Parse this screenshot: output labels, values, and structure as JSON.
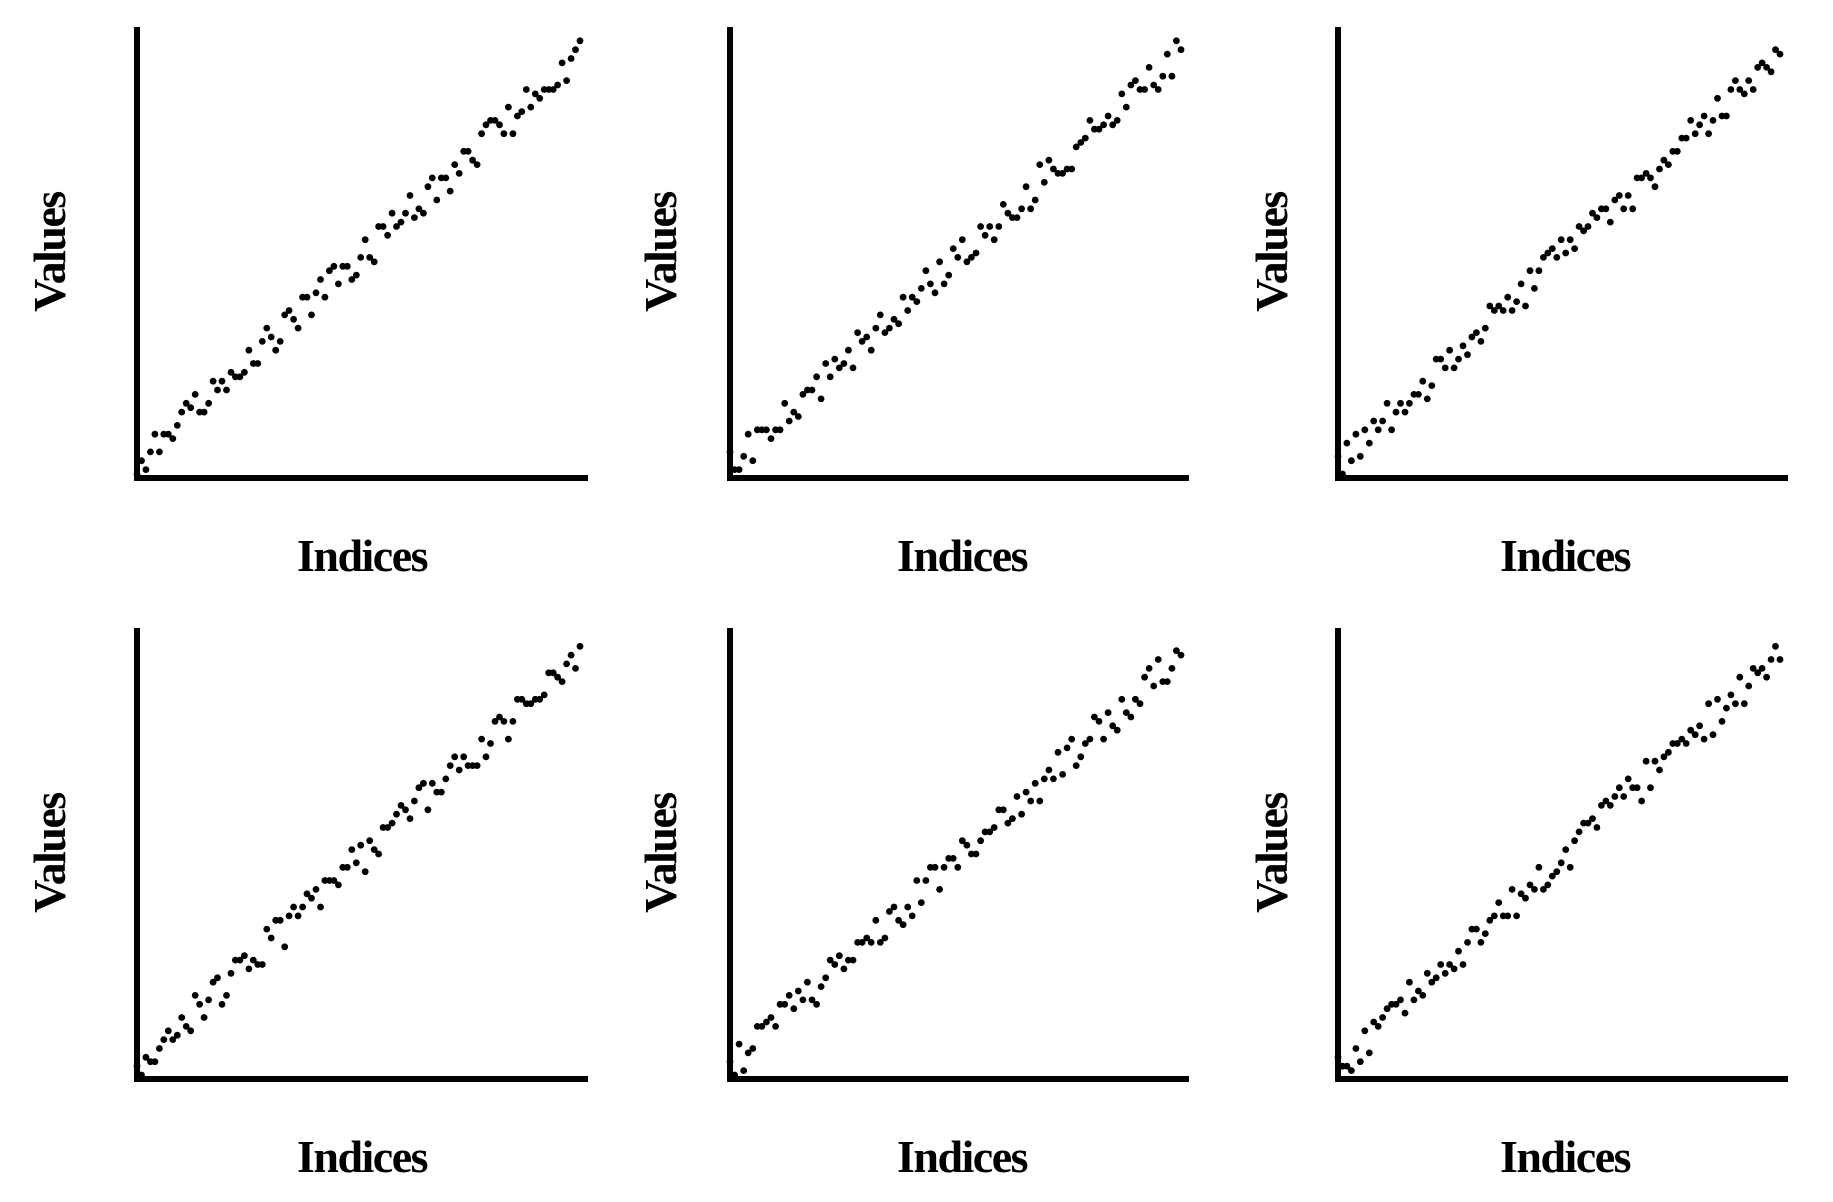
{
  "figure": {
    "background": "#ffffff",
    "ink_color": "#000000",
    "rows": 2,
    "cols": 3,
    "description": "Grid of six scatter plots of noisy ascending values versus indices; no ticks, no tick labels, no titles, no legend, no grid"
  },
  "chart_data": [
    {
      "type": "scatter",
      "title": "",
      "xlabel": "Indices",
      "ylabel": "Values",
      "x_mode": "index",
      "n_points": 100,
      "x_range": [
        0,
        99
      ],
      "ylim_percent": [
        0,
        100
      ],
      "grid": false,
      "legend": false,
      "axis_ticks": "none",
      "marker": {
        "shape": "circle",
        "color": "#000000"
      },
      "y_values": [
        0,
        3,
        1,
        5,
        9,
        5,
        9,
        9,
        8,
        11,
        14,
        16,
        15,
        18,
        14,
        14,
        16,
        21,
        19,
        21,
        19,
        23,
        22,
        22,
        23,
        28,
        25,
        25,
        30,
        33,
        31,
        28,
        30,
        36,
        37,
        35,
        33,
        40,
        40,
        36,
        41,
        44,
        40,
        46,
        47,
        43,
        47,
        47,
        44,
        45,
        49,
        53,
        49,
        48,
        56,
        56,
        54,
        59,
        56,
        57,
        59,
        63,
        58,
        60,
        59,
        65,
        67,
        62,
        67,
        67,
        64,
        70,
        68,
        73,
        73,
        71,
        70,
        77,
        79,
        80,
        80,
        79,
        77,
        83,
        77,
        81,
        82,
        87,
        83,
        86,
        85,
        87,
        87,
        87,
        88,
        93,
        89,
        94,
        96,
        98
      ]
    },
    {
      "type": "scatter",
      "title": "",
      "xlabel": "Indices",
      "ylabel": "Values",
      "x_mode": "index",
      "n_points": 100,
      "x_range": [
        0,
        99
      ],
      "ylim_percent": [
        0,
        100
      ],
      "grid": false,
      "legend": false,
      "axis_ticks": "none",
      "marker": {
        "shape": "circle",
        "color": "#000000"
      },
      "y_values": [
        5,
        1,
        1,
        4,
        9,
        3,
        10,
        10,
        10,
        8,
        10,
        10,
        16,
        12,
        14,
        13,
        18,
        19,
        19,
        22,
        17,
        25,
        22,
        26,
        24,
        25,
        28,
        24,
        32,
        30,
        31,
        28,
        33,
        36,
        32,
        33,
        35,
        34,
        40,
        37,
        40,
        39,
        42,
        46,
        43,
        41,
        48,
        43,
        45,
        51,
        49,
        53,
        48,
        49,
        50,
        56,
        54,
        56,
        53,
        56,
        61,
        59,
        58,
        58,
        60,
        65,
        60,
        62,
        70,
        66,
        71,
        69,
        68,
        68,
        69,
        69,
        74,
        75,
        76,
        80,
        78,
        78,
        79,
        81,
        79,
        80,
        86,
        83,
        88,
        89,
        87,
        87,
        92,
        88,
        87,
        90,
        95,
        90,
        98,
        96
      ]
    },
    {
      "type": "scatter",
      "title": "",
      "xlabel": "Indices",
      "ylabel": "Values",
      "x_mode": "index",
      "n_points": 100,
      "x_range": [
        0,
        99
      ],
      "ylim_percent": [
        0,
        100
      ],
      "grid": false,
      "legend": false,
      "axis_ticks": "none",
      "marker": {
        "shape": "circle",
        "color": "#000000"
      },
      "y_values": [
        4,
        0,
        7,
        3,
        9,
        4,
        10,
        7,
        12,
        10,
        12,
        16,
        10,
        14,
        16,
        14,
        16,
        18,
        18,
        21,
        17,
        20,
        26,
        26,
        24,
        28,
        24,
        26,
        29,
        27,
        31,
        32,
        30,
        33,
        38,
        37,
        38,
        37,
        40,
        37,
        39,
        43,
        38,
        46,
        42,
        46,
        49,
        50,
        51,
        49,
        53,
        50,
        53,
        51,
        56,
        55,
        56,
        59,
        58,
        60,
        60,
        57,
        62,
        63,
        60,
        63,
        60,
        67,
        67,
        68,
        67,
        65,
        69,
        71,
        70,
        73,
        73,
        76,
        76,
        80,
        77,
        79,
        81,
        77,
        80,
        85,
        81,
        81,
        87,
        89,
        87,
        86,
        89,
        87,
        92,
        93,
        92,
        91,
        96,
        95
      ]
    },
    {
      "type": "scatter",
      "title": "",
      "xlabel": "Indices",
      "ylabel": "Values",
      "x_mode": "index",
      "n_points": 100,
      "x_range": [
        0,
        99
      ],
      "ylim_percent": [
        0,
        100
      ],
      "grid": false,
      "legend": false,
      "axis_ticks": "none",
      "marker": {
        "shape": "circle",
        "color": "#000000"
      },
      "y_values": [
        2,
        0,
        4,
        3,
        3,
        6,
        8,
        10,
        8,
        9,
        13,
        11,
        10,
        18,
        16,
        13,
        17,
        21,
        22,
        16,
        18,
        23,
        26,
        26,
        27,
        24,
        26,
        25,
        25,
        33,
        31,
        35,
        35,
        29,
        36,
        38,
        36,
        38,
        41,
        40,
        42,
        38,
        44,
        44,
        44,
        43,
        47,
        47,
        51,
        48,
        52,
        46,
        53,
        51,
        50,
        56,
        56,
        57,
        59,
        61,
        60,
        58,
        62,
        65,
        66,
        60,
        66,
        64,
        64,
        67,
        70,
        72,
        69,
        72,
        70,
        70,
        70,
        76,
        72,
        75,
        80,
        81,
        80,
        76,
        80,
        85,
        85,
        84,
        84,
        85,
        85,
        86,
        91,
        91,
        90,
        89,
        93,
        95,
        92,
        97
      ]
    },
    {
      "type": "scatter",
      "title": "",
      "xlabel": "Indices",
      "ylabel": "Values",
      "x_mode": "index",
      "n_points": 100,
      "x_range": [
        0,
        99
      ],
      "ylim_percent": [
        0,
        100
      ],
      "grid": false,
      "legend": false,
      "axis_ticks": "none",
      "marker": {
        "shape": "circle",
        "color": "#000000"
      },
      "y_values": [
        3,
        0,
        7,
        1,
        5,
        6,
        11,
        11,
        12,
        13,
        11,
        16,
        16,
        18,
        15,
        19,
        17,
        21,
        17,
        16,
        20,
        22,
        26,
        25,
        27,
        24,
        26,
        26,
        30,
        30,
        31,
        30,
        35,
        30,
        31,
        37,
        38,
        35,
        34,
        38,
        36,
        44,
        39,
        44,
        47,
        47,
        42,
        47,
        49,
        49,
        47,
        53,
        52,
        50,
        50,
        53,
        55,
        55,
        56,
        60,
        60,
        57,
        58,
        63,
        59,
        64,
        62,
        66,
        62,
        67,
        69,
        67,
        73,
        68,
        74,
        76,
        70,
        72,
        75,
        76,
        81,
        80,
        76,
        82,
        79,
        78,
        85,
        82,
        81,
        85,
        84,
        90,
        92,
        88,
        94,
        89,
        89,
        92,
        96,
        95
      ]
    },
    {
      "type": "scatter",
      "title": "",
      "xlabel": "Indices",
      "ylabel": "Values",
      "x_mode": "index",
      "n_points": 100,
      "x_range": [
        0,
        99
      ],
      "ylim_percent": [
        0,
        100
      ],
      "grid": false,
      "legend": false,
      "axis_ticks": "none",
      "marker": {
        "shape": "circle",
        "color": "#000000"
      },
      "y_values": [
        4,
        2,
        2,
        1,
        6,
        3,
        10,
        5,
        12,
        11,
        13,
        15,
        16,
        16,
        17,
        14,
        21,
        17,
        19,
        18,
        23,
        21,
        22,
        25,
        23,
        25,
        24,
        28,
        25,
        30,
        33,
        33,
        30,
        32,
        35,
        36,
        39,
        36,
        36,
        42,
        36,
        41,
        40,
        43,
        42,
        47,
        42,
        43,
        45,
        46,
        48,
        51,
        47,
        53,
        55,
        57,
        57,
        58,
        56,
        61,
        62,
        61,
        63,
        65,
        63,
        67,
        65,
        65,
        62,
        71,
        65,
        71,
        69,
        72,
        73,
        75,
        75,
        76,
        75,
        78,
        77,
        79,
        76,
        84,
        77,
        85,
        80,
        83,
        86,
        84,
        90,
        84,
        88,
        92,
        91,
        92,
        90,
        94,
        97,
        94
      ]
    }
  ]
}
